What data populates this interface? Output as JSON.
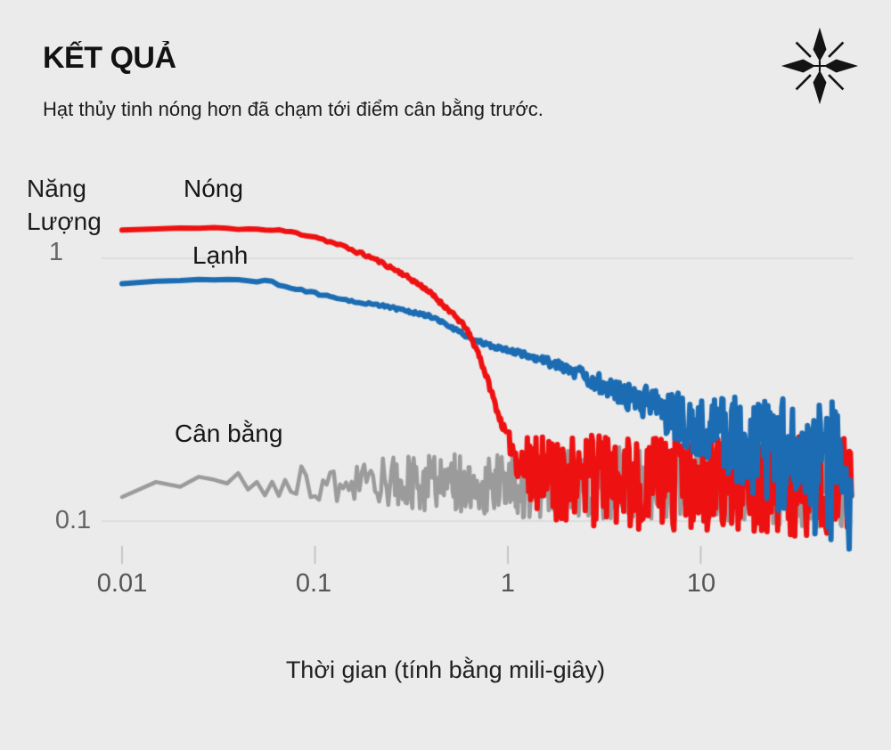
{
  "header": {
    "title": "KẾT QUẢ",
    "subtitle": "Hạt thủy tinh nóng hơn đã chạm tới điểm cân bằng trước.",
    "logo_icon": "compass-star-icon"
  },
  "colors": {
    "background": "#ebebeb",
    "title_text": "#121212",
    "tick_text": "#555555",
    "grid_line": "#d8d8d8",
    "tick_mark": "#bdbdbd",
    "hot": "#ee1111",
    "cold": "#1b6cb3",
    "equilibrium": "#9b9b9b",
    "logo": "#141414"
  },
  "chart_data": {
    "type": "line",
    "x_axis": {
      "label": "Thời gian (tính bằng mili-giây)",
      "scale": "log",
      "range_ms": [
        0.01,
        61
      ],
      "ticks": [
        {
          "value": 0.01,
          "label": "0.01"
        },
        {
          "value": 0.1,
          "label": "0.1"
        },
        {
          "value": 1,
          "label": "1"
        },
        {
          "value": 10,
          "label": "10"
        }
      ]
    },
    "y_axis": {
      "label": "Năng Lượng",
      "scale": "log",
      "ticks": [
        {
          "value": 1,
          "label": "1"
        },
        {
          "value": 0.1,
          "label": "0.1"
        }
      ]
    },
    "grid_values_y": [
      1,
      0.1
    ],
    "sample_interval_ms": 0.005,
    "noise_seed": 7,
    "equilibrium_energy": 0.14,
    "series": [
      {
        "id": "equilibrium",
        "name": "Cân bằng",
        "color_key": "equilibrium",
        "line_width": 4.5,
        "mean_tE": [
          [
            0.01,
            0.132
          ],
          [
            0.02,
            0.141
          ],
          [
            61,
            0.138
          ]
        ],
        "noise_amp_decades": [
          [
            0.01,
            0.042
          ],
          [
            0.05,
            0.055
          ],
          [
            0.1,
            0.07
          ],
          [
            0.3,
            0.1
          ],
          [
            1,
            0.13
          ],
          [
            3,
            0.14
          ],
          [
            10,
            0.15
          ],
          [
            30,
            0.16
          ],
          [
            61,
            0.17
          ]
        ]
      },
      {
        "id": "hot",
        "name": "Nóng",
        "color_key": "hot",
        "line_width": 6,
        "draw_split_ms": 1.28,
        "mean_tE": [
          [
            0.01,
            1.28
          ],
          [
            0.018,
            1.3
          ],
          [
            0.04,
            1.3
          ],
          [
            0.07,
            1.27
          ],
          [
            0.1,
            1.21
          ],
          [
            0.14,
            1.11
          ],
          [
            0.2,
            1.0
          ],
          [
            0.28,
            0.88
          ],
          [
            0.38,
            0.76
          ],
          [
            0.5,
            0.63
          ],
          [
            0.6,
            0.55
          ],
          [
            0.7,
            0.44
          ],
          [
            0.8,
            0.33
          ],
          [
            0.9,
            0.25
          ],
          [
            1.0,
            0.205
          ],
          [
            1.15,
            0.168
          ],
          [
            1.35,
            0.15
          ],
          [
            2.0,
            0.143
          ],
          [
            10,
            0.14
          ],
          [
            61,
            0.132
          ]
        ],
        "noise_amp_decades": [
          [
            0.01,
            0.004
          ],
          [
            0.6,
            0.007
          ],
          [
            0.95,
            0.015
          ],
          [
            1.05,
            0.05
          ],
          [
            1.4,
            0.17
          ],
          [
            3,
            0.18
          ],
          [
            10,
            0.185
          ],
          [
            61,
            0.2
          ]
        ]
      },
      {
        "id": "cold",
        "name": "Lạnh",
        "color_key": "cold",
        "line_width": 6,
        "mean_tE": [
          [
            0.01,
            0.8
          ],
          [
            0.025,
            0.825
          ],
          [
            0.041,
            0.835
          ],
          [
            0.06,
            0.81
          ],
          [
            0.078,
            0.765
          ],
          [
            0.132,
            0.705
          ],
          [
            0.25,
            0.65
          ],
          [
            0.4,
            0.6
          ],
          [
            0.55,
            0.53
          ],
          [
            0.66,
            0.49
          ],
          [
            0.9,
            0.455
          ],
          [
            1.4,
            0.42
          ],
          [
            2.3,
            0.365
          ],
          [
            4.0,
            0.3
          ],
          [
            6.7,
            0.26
          ],
          [
            11,
            0.225
          ],
          [
            19,
            0.192
          ],
          [
            33,
            0.165
          ],
          [
            61,
            0.14
          ]
        ],
        "noise_amp_decades": [
          [
            0.01,
            0.004
          ],
          [
            0.5,
            0.006
          ],
          [
            1.0,
            0.009
          ],
          [
            2,
            0.022
          ],
          [
            4,
            0.05
          ],
          [
            8,
            0.1
          ],
          [
            15,
            0.16
          ],
          [
            30,
            0.24
          ],
          [
            45,
            0.28
          ],
          [
            61,
            0.3
          ]
        ]
      }
    ]
  }
}
